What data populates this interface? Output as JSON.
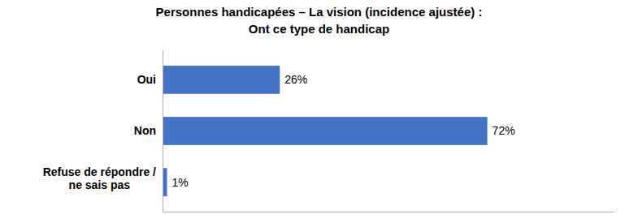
{
  "chart_data": {
    "type": "bar",
    "orientation": "horizontal",
    "title": "Personnes handicapées – La vision (incidence ajustée) :",
    "subtitle": "Ont ce type de handicap",
    "categories": [
      "Oui",
      "Non",
      "Refuse de répondre /\nne sais pas"
    ],
    "values": [
      26,
      72,
      1
    ],
    "value_labels": [
      "26%",
      "72%",
      "1%"
    ],
    "color": "#4472C4",
    "xlim": [
      0,
      100
    ],
    "data_labels": true,
    "tick_labels": "y",
    "grid": false
  }
}
